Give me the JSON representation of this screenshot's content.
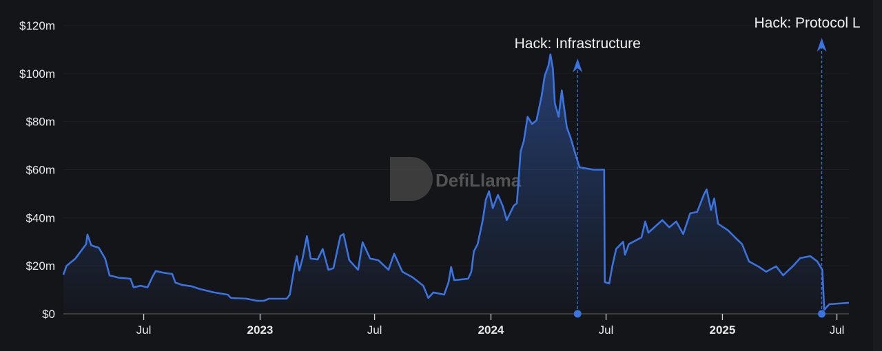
{
  "chart_data": {
    "type": "area",
    "title": "",
    "xlabel": "",
    "ylabel": "",
    "ylim": [
      0,
      120
    ],
    "y_unit": "$ millions",
    "y_ticks": [
      "$0",
      "$20m",
      "$40m",
      "$60m",
      "$80m",
      "$100m",
      "$120m"
    ],
    "y_tick_values": [
      0,
      20,
      40,
      60,
      80,
      100,
      120
    ],
    "x_range": [
      "2022-02-24",
      "2025-07-20"
    ],
    "x_ticks": [
      {
        "label": "Jul",
        "date": "2022-07-01",
        "bold": false
      },
      {
        "label": "2023",
        "date": "2023-01-01",
        "bold": true
      },
      {
        "label": "Jul",
        "date": "2023-07-01",
        "bold": false
      },
      {
        "label": "2024",
        "date": "2024-01-01",
        "bold": true
      },
      {
        "label": "Jul",
        "date": "2024-07-01",
        "bold": false
      },
      {
        "label": "2025",
        "date": "2025-01-01",
        "bold": true
      },
      {
        "label": "Jul",
        "date": "2025-07-01",
        "bold": false
      }
    ],
    "grid": true,
    "line_color": "#3b73e0",
    "background": "#141518",
    "series": [
      {
        "points": [
          [
            "2022-02-24",
            16.3
          ],
          [
            "2022-03-01",
            20
          ],
          [
            "2022-03-15",
            23
          ],
          [
            "2022-04-01",
            29
          ],
          [
            "2022-04-03",
            33
          ],
          [
            "2022-04-09",
            28.5
          ],
          [
            "2022-04-21",
            27.5
          ],
          [
            "2022-05-01",
            23
          ],
          [
            "2022-05-08",
            16
          ],
          [
            "2022-05-23",
            15
          ],
          [
            "2022-06-10",
            14.6
          ],
          [
            "2022-06-15",
            11
          ],
          [
            "2022-06-26",
            11.7
          ],
          [
            "2022-07-07",
            11
          ],
          [
            "2022-07-15",
            15.5
          ],
          [
            "2022-07-20",
            17.8
          ],
          [
            "2022-08-03",
            17
          ],
          [
            "2022-08-15",
            16.6
          ],
          [
            "2022-08-20",
            13
          ],
          [
            "2022-08-31",
            12
          ],
          [
            "2022-09-14",
            11.5
          ],
          [
            "2022-09-28",
            10.3
          ],
          [
            "2022-10-20",
            8.9
          ],
          [
            "2022-11-11",
            8
          ],
          [
            "2022-11-16",
            6.6
          ],
          [
            "2022-12-11",
            6.3
          ],
          [
            "2022-12-27",
            5.4
          ],
          [
            "2023-01-07",
            5.4
          ],
          [
            "2023-01-15",
            6.3
          ],
          [
            "2023-02-12",
            6.3
          ],
          [
            "2023-02-17",
            8
          ],
          [
            "2023-02-24",
            19
          ],
          [
            "2023-02-28",
            24
          ],
          [
            "2023-03-04",
            18
          ],
          [
            "2023-03-09",
            23
          ],
          [
            "2023-03-16",
            32.4
          ],
          [
            "2023-03-22",
            23
          ],
          [
            "2023-04-02",
            22.6
          ],
          [
            "2023-04-10",
            27
          ],
          [
            "2023-04-19",
            18.3
          ],
          [
            "2023-04-27",
            19
          ],
          [
            "2023-05-08",
            32.4
          ],
          [
            "2023-05-13",
            33.2
          ],
          [
            "2023-05-22",
            22.3
          ],
          [
            "2023-06-05",
            18.3
          ],
          [
            "2023-06-12",
            29.8
          ],
          [
            "2023-06-24",
            23
          ],
          [
            "2023-07-07",
            22.3
          ],
          [
            "2023-07-23",
            18.3
          ],
          [
            "2023-08-01",
            25
          ],
          [
            "2023-08-14",
            17.5
          ],
          [
            "2023-08-30",
            15.2
          ],
          [
            "2023-09-16",
            11.7
          ],
          [
            "2023-09-24",
            6.6
          ],
          [
            "2023-10-02",
            8.9
          ],
          [
            "2023-10-19",
            8
          ],
          [
            "2023-10-26",
            13.2
          ],
          [
            "2023-10-30",
            19.5
          ],
          [
            "2023-11-04",
            14
          ],
          [
            "2023-11-26",
            14.6
          ],
          [
            "2023-12-01",
            17.5
          ],
          [
            "2023-12-05",
            26
          ],
          [
            "2023-12-11",
            29
          ],
          [
            "2023-12-19",
            39
          ],
          [
            "2023-12-24",
            47.5
          ],
          [
            "2023-12-29",
            51
          ],
          [
            "2024-01-04",
            44
          ],
          [
            "2024-01-12",
            49.5
          ],
          [
            "2024-01-20",
            44.7
          ],
          [
            "2024-01-26",
            39
          ],
          [
            "2024-02-06",
            45
          ],
          [
            "2024-02-11",
            46
          ],
          [
            "2024-02-17",
            67.6
          ],
          [
            "2024-02-22",
            72
          ],
          [
            "2024-02-28",
            82
          ],
          [
            "2024-03-06",
            79
          ],
          [
            "2024-03-13",
            80.5
          ],
          [
            "2024-03-21",
            90.5
          ],
          [
            "2024-03-26",
            99
          ],
          [
            "2024-04-01",
            103.4
          ],
          [
            "2024-04-04",
            108
          ],
          [
            "2024-04-08",
            102
          ],
          [
            "2024-04-11",
            87.6
          ],
          [
            "2024-04-17",
            82
          ],
          [
            "2024-04-22",
            93
          ],
          [
            "2024-04-30",
            77.6
          ],
          [
            "2024-05-06",
            73.3
          ],
          [
            "2024-05-14",
            66
          ],
          [
            "2024-05-20",
            61
          ],
          [
            "2024-06-11",
            60
          ],
          [
            "2024-06-28",
            60
          ],
          [
            "2024-06-29",
            13.2
          ],
          [
            "2024-07-06",
            12.6
          ],
          [
            "2024-07-11",
            20
          ],
          [
            "2024-07-17",
            27
          ],
          [
            "2024-07-28",
            30
          ],
          [
            "2024-07-31",
            24.6
          ],
          [
            "2024-08-06",
            29
          ],
          [
            "2024-08-26",
            31.8
          ],
          [
            "2024-09-01",
            38.4
          ],
          [
            "2024-09-06",
            33.8
          ],
          [
            "2024-09-28",
            39
          ],
          [
            "2024-10-09",
            36
          ],
          [
            "2024-10-20",
            38.4
          ],
          [
            "2024-10-31",
            33.2
          ],
          [
            "2024-11-11",
            41.8
          ],
          [
            "2024-11-22",
            42.4
          ],
          [
            "2024-12-03",
            49.8
          ],
          [
            "2024-12-07",
            51.8
          ],
          [
            "2024-12-14",
            43.2
          ],
          [
            "2024-12-19",
            48
          ],
          [
            "2024-12-25",
            37.5
          ],
          [
            "2025-01-10",
            34.7
          ],
          [
            "2025-01-21",
            31.8
          ],
          [
            "2025-02-01",
            29
          ],
          [
            "2025-02-12",
            21.8
          ],
          [
            "2025-02-28",
            19.5
          ],
          [
            "2025-03-11",
            17.5
          ],
          [
            "2025-03-27",
            19.8
          ],
          [
            "2025-04-07",
            16
          ],
          [
            "2025-04-23",
            20
          ],
          [
            "2025-05-04",
            23.2
          ],
          [
            "2025-05-20",
            24
          ],
          [
            "2025-05-31",
            21.8
          ],
          [
            "2025-06-08",
            18.3
          ],
          [
            "2025-06-11",
            1.7
          ],
          [
            "2025-06-19",
            4
          ],
          [
            "2025-07-20",
            4.6
          ]
        ]
      }
    ],
    "annotations": [
      {
        "label": "Hack: Infrastructure",
        "date": "2024-05-17"
      },
      {
        "label": "Hack: Protocol L",
        "date": "2025-06-07"
      }
    ]
  },
  "watermark": {
    "text": "DefiLlama"
  }
}
